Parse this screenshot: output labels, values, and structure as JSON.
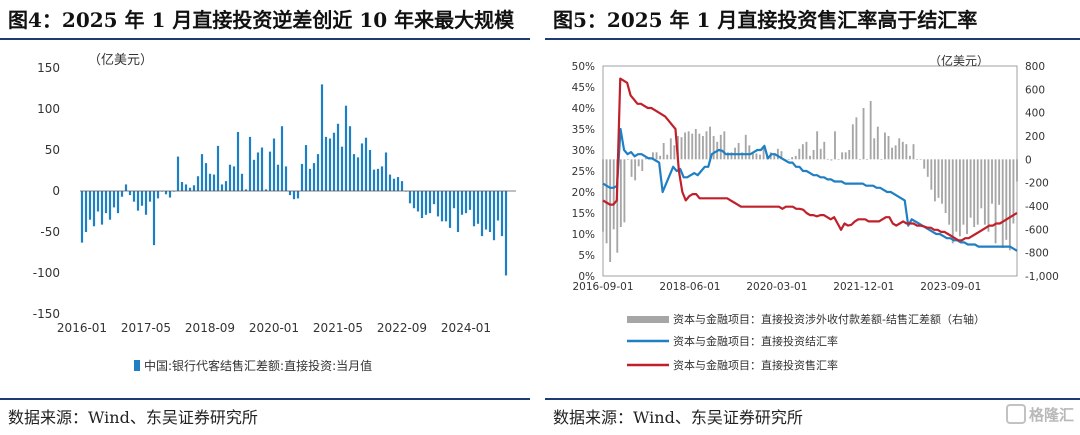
{
  "left": {
    "title": "图4：2025 年 1 月直接投资逆差创近 10 年来最大规模",
    "source": "数据来源：Wind、东吴证券研究所"
  },
  "right": {
    "title": "图5：2025 年 1 月直接投资售汇率高于结汇率",
    "source": "数据来源：Wind、东吴证券研究所"
  },
  "watermark": {
    "text": "格隆汇",
    "icon": "glh-logo-icon"
  },
  "chart_data": [
    {
      "type": "bar",
      "unit_label": "（亿美元）",
      "ylim": [
        -150,
        150
      ],
      "yticks": [
        -150,
        -100,
        -50,
        0,
        50,
        100,
        150
      ],
      "xticks": [
        "2016-01",
        "2017-05",
        "2018-09",
        "2020-01",
        "2021-05",
        "2022-09",
        "2024-01"
      ],
      "x_start": "2016-01",
      "x_end": "2025-01",
      "legend": "中国:银行代客结售汇差额:直接投资:当月值",
      "legend_position": "bottom",
      "series": [
        {
          "name": "中国:银行代客结售汇差额:直接投资:当月值",
          "color": "#1f7fc4",
          "values": [
            -63,
            -50,
            -35,
            -43,
            -25,
            -41,
            -27,
            -35,
            -20,
            -27,
            -7,
            8,
            -5,
            -13,
            -24,
            -18,
            -29,
            -13,
            -66,
            -9,
            0,
            -4,
            -8,
            0,
            42,
            11,
            8,
            4,
            7,
            18,
            45,
            34,
            21,
            20,
            55,
            8,
            12,
            32,
            30,
            72,
            21,
            2,
            66,
            38,
            47,
            53,
            2,
            48,
            64,
            32,
            79,
            30,
            -5,
            -10,
            -9,
            33,
            56,
            27,
            34,
            45,
            130,
            66,
            64,
            71,
            82,
            54,
            104,
            79,
            45,
            41,
            58,
            65,
            50,
            26,
            27,
            30,
            47,
            20,
            15,
            17,
            12,
            0,
            -15,
            -21,
            -25,
            -33,
            -29,
            -27,
            -16,
            -31,
            -37,
            -37,
            -45,
            -21,
            -50,
            -29,
            -27,
            -23,
            -43,
            -40,
            -55,
            -47,
            -50,
            -60,
            -36,
            -55,
            -103
          ]
        }
      ]
    },
    {
      "type": "bar",
      "unit_label": "（亿美元）",
      "y_left_ticks": [
        "0%",
        "5%",
        "10%",
        "15%",
        "20%",
        "25%",
        "30%",
        "35%",
        "40%",
        "45%",
        "50%"
      ],
      "y_left_range": [
        0,
        50
      ],
      "y_right_ticks": [
        "-1,000",
        "-800",
        "-600",
        "-400",
        "-200",
        "0",
        "200",
        "400",
        "600",
        "800"
      ],
      "y_right_range": [
        -1000,
        800
      ],
      "xticks": [
        "2016-09-01",
        "2018-06-01",
        "2020-03-01",
        "2021-12-01",
        "2023-09-01"
      ],
      "x_start": "2016-09",
      "x_end": "2025-01",
      "legend_position": "bottom",
      "series": [
        {
          "name": "资本与金融项目：直接投资涉外收付款差额-结售汇差额（右轴）",
          "axis": "right",
          "kind": "bar",
          "color": "#a6a6a6",
          "values": [
            -620,
            -720,
            -880,
            -600,
            -800,
            -580,
            -540,
            0,
            -150,
            -180,
            -60,
            -100,
            10,
            20,
            60,
            60,
            30,
            140,
            40,
            180,
            120,
            200,
            190,
            230,
            240,
            220,
            260,
            220,
            200,
            240,
            280,
            200,
            150,
            210,
            240,
            60,
            60,
            100,
            140,
            60,
            210,
            120,
            60,
            50,
            40,
            100,
            30,
            60,
            40,
            90,
            70,
            0,
            0,
            20,
            30,
            90,
            130,
            150,
            30,
            80,
            240,
            90,
            150,
            0,
            -10,
            240,
            0,
            60,
            60,
            80,
            300,
            360,
            0,
            440,
            0,
            500,
            180,
            280,
            0,
            230,
            200,
            100,
            120,
            180,
            150,
            130,
            30,
            130,
            0,
            0,
            -80,
            -150,
            -260,
            -360,
            -330,
            -380,
            -460,
            -560,
            -720,
            -620,
            -660,
            -560,
            -640,
            -500,
            -580,
            -560,
            -420,
            -560,
            -620,
            -380,
            -720,
            -390,
            -760,
            -690,
            -780,
            -550,
            -190
          ]
        },
        {
          "name": "资本与金融项目：直接投资结汇率",
          "axis": "left",
          "kind": "line",
          "color": "#1f7fc4",
          "values": [
            22,
            21.5,
            21,
            21,
            21.5,
            35,
            30,
            29,
            29.5,
            28.5,
            29,
            29,
            28.5,
            28,
            28,
            27.5,
            27,
            20,
            22,
            24,
            26,
            25,
            25.5,
            23.5,
            23.5,
            24,
            24.5,
            24,
            25,
            26,
            26,
            29,
            29.5,
            30,
            29.8,
            29,
            29,
            29,
            29,
            29,
            29,
            29,
            29,
            29.5,
            30,
            30,
            31,
            28,
            29,
            29,
            28.5,
            28,
            27.5,
            27,
            27,
            26,
            26,
            25,
            25,
            24.5,
            24,
            24,
            23.5,
            23.5,
            23,
            23,
            22.5,
            22.5,
            22.5,
            22,
            22,
            22,
            22,
            22,
            22,
            21.5,
            21.5,
            21.5,
            21,
            21,
            20.5,
            20,
            20,
            19.5,
            19,
            18.5,
            18,
            12,
            13.5,
            13,
            12.5,
            12,
            11.5,
            11,
            10.5,
            10,
            10,
            9.5,
            9,
            9,
            8.5,
            8.5,
            8,
            8,
            7.5,
            7.5,
            7.5,
            7,
            7,
            7,
            7,
            7,
            7,
            7,
            7,
            7,
            7,
            6.5,
            6
          ]
        },
        {
          "name": "资本与金融项目：直接投资售汇率",
          "axis": "left",
          "kind": "line",
          "color": "#c0202a",
          "values": [
            18,
            17.5,
            17,
            17,
            18,
            47,
            46.5,
            46,
            43,
            42,
            41,
            41,
            40.5,
            40,
            40,
            39.5,
            39,
            38.5,
            38,
            37,
            36,
            35,
            25,
            20,
            18,
            19,
            19.5,
            19.5,
            18.5,
            18.5,
            18.5,
            18.5,
            18.5,
            18.5,
            18.5,
            18.5,
            18.5,
            18,
            17.5,
            17,
            16.5,
            16.5,
            16.5,
            16.5,
            16.5,
            16.5,
            16.5,
            16.5,
            16.5,
            16.5,
            16.5,
            16.5,
            16,
            16.5,
            16.5,
            16.5,
            16,
            16,
            15.8,
            15,
            14.5,
            14.5,
            14.2,
            14.5,
            14.5,
            14,
            13.5,
            14,
            12.5,
            11,
            12.5,
            12,
            12.2,
            13,
            13.5,
            13.5,
            13.5,
            13,
            13,
            13,
            13,
            13.5,
            14,
            14,
            12.5,
            12,
            12.5,
            13,
            12.5,
            12.5,
            12.5,
            12,
            12,
            11.8,
            11.5,
            11.5,
            11,
            11,
            10.5,
            10.5,
            10,
            9.5,
            9,
            8.5,
            8.5,
            9,
            9,
            9.5,
            10,
            10.5,
            11,
            11.5,
            12,
            12,
            12.5,
            12.5,
            13,
            13.5,
            14,
            14.5,
            15
          ]
        }
      ]
    }
  ]
}
